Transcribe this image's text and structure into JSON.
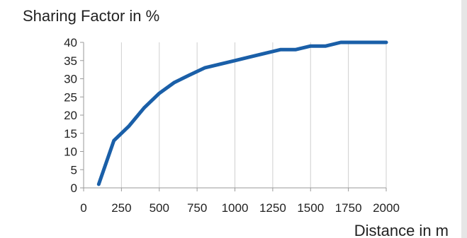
{
  "chart_data": {
    "type": "line",
    "ylabel": "Sharing Factor in %",
    "xlabel": "Distance in m",
    "xlim": [
      0,
      2000
    ],
    "ylim": [
      0,
      40
    ],
    "xticks": [
      0,
      250,
      500,
      750,
      1000,
      1250,
      1500,
      1750,
      2000
    ],
    "yticks": [
      0,
      5,
      10,
      15,
      20,
      25,
      30,
      35,
      40
    ],
    "grid": "vertical",
    "legend": "none",
    "series": [
      {
        "color": "#1a5fa8",
        "x": [
          100,
          200,
          300,
          400,
          500,
          600,
          700,
          800,
          900,
          1000,
          1100,
          1200,
          1300,
          1400,
          1500,
          1600,
          1700,
          1800,
          1900,
          2000
        ],
        "y": [
          1,
          13,
          17,
          22,
          26,
          29,
          31,
          33,
          34,
          35,
          36,
          37,
          38,
          38,
          39,
          39,
          40,
          40,
          40,
          40
        ]
      }
    ]
  }
}
